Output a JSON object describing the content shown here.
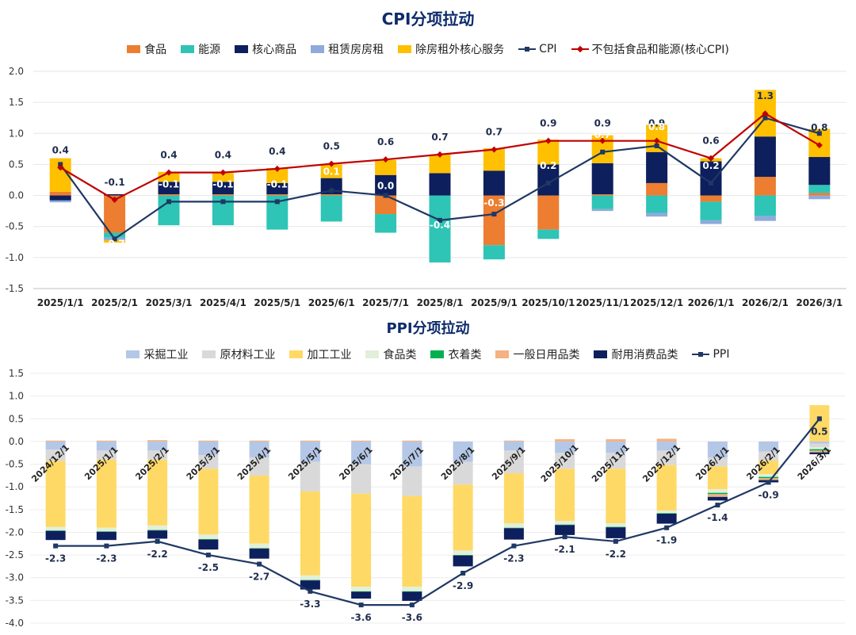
{
  "chart_data": [
    {
      "type": "bar",
      "title": "CPI分项拉动",
      "xlabel": "",
      "ylabel": "",
      "ylim": [
        -1.5,
        2.0
      ],
      "yticks": [
        "2.0",
        "1.5",
        "1.0",
        "0.5",
        "0.0",
        "-0.5",
        "-1.0",
        "-1.5"
      ],
      "categories": [
        "2025/1/1",
        "2025/2/1",
        "2025/3/1",
        "2025/4/1",
        "2025/5/1",
        "2025/6/1",
        "2025/7/1",
        "2025/8/1",
        "2025/9/1",
        "2025/10/1",
        "2025/11/1",
        "2025/12/1",
        "2026/1/1",
        "2026/2/1",
        "2026/3/1"
      ],
      "legend_position": "top",
      "series": [
        {
          "name": "食品",
          "kind": "bar",
          "color": "#ed7d31",
          "values": [
            0.06,
            -0.6,
            0.02,
            0.02,
            0.02,
            0.02,
            -0.3,
            0.0,
            -0.8,
            -0.55,
            0.02,
            0.2,
            -0.1,
            0.3,
            0.04
          ]
        },
        {
          "name": "能源",
          "kind": "bar",
          "color": "#2ec4b6",
          "values": [
            0.0,
            -0.08,
            -0.48,
            -0.48,
            -0.55,
            -0.42,
            -0.3,
            -1.08,
            -0.23,
            -0.15,
            -0.22,
            -0.28,
            -0.3,
            -0.33,
            0.13
          ]
        },
        {
          "name": "核心商品",
          "kind": "bar",
          "color": "#0d1f5c",
          "values": [
            -0.08,
            0.02,
            0.2,
            0.2,
            0.18,
            0.26,
            0.33,
            0.36,
            0.4,
            0.5,
            0.5,
            0.5,
            0.55,
            0.65,
            0.45
          ]
        },
        {
          "name": "租赁房房租",
          "kind": "bar",
          "color": "#8faadc",
          "values": [
            -0.03,
            -0.04,
            0.0,
            0.0,
            0.0,
            0.0,
            0.0,
            0.0,
            0.0,
            0.0,
            -0.03,
            -0.06,
            -0.06,
            -0.08,
            -0.06
          ]
        },
        {
          "name": "除房租外核心服务",
          "kind": "bar",
          "color": "#ffc000",
          "values": [
            0.54,
            -0.04,
            0.16,
            0.14,
            0.24,
            0.22,
            0.24,
            0.3,
            0.36,
            0.4,
            0.45,
            0.44,
            0.05,
            0.75,
            0.45
          ]
        },
        {
          "name": "CPI",
          "kind": "line",
          "color": "#1f3864",
          "values": [
            0.5,
            -0.7,
            -0.1,
            -0.1,
            -0.1,
            0.08,
            0.0,
            -0.4,
            -0.3,
            0.2,
            0.7,
            0.8,
            0.2,
            1.25,
            1.0
          ]
        },
        {
          "name": "不包括食品和能源(核心CPI)",
          "kind": "line",
          "color": "#c00000",
          "values": [
            0.45,
            -0.07,
            0.37,
            0.37,
            0.43,
            0.51,
            0.58,
            0.66,
            0.74,
            0.88,
            0.88,
            0.88,
            0.6,
            1.32,
            0.81
          ]
        }
      ],
      "data_labels": {
        "core_cpi": [
          "0.4",
          "-0.1",
          "0.4",
          "0.4",
          "0.4",
          "0.5",
          "0.6",
          "0.7",
          "0.7",
          "0.9",
          "0.9",
          "0.9",
          "0.6",
          "1.3",
          "0.8"
        ],
        "cpi": [
          "",
          "-0.7",
          "-0.1",
          "-0.1",
          "-0.1",
          "0.1",
          "0.0",
          "-0.4",
          "-0.3",
          "0.2",
          "0.7",
          "0.8",
          "0.2",
          "",
          ""
        ]
      }
    },
    {
      "type": "bar",
      "title": "PPI分项拉动",
      "xlabel": "",
      "ylabel": "",
      "ylim": [
        -4.0,
        1.5
      ],
      "yticks": [
        "1.5",
        "1.0",
        "0.5",
        "0.0",
        "-0.5",
        "-1.0",
        "-1.5",
        "-2.0",
        "-2.5",
        "-3.0",
        "-3.5",
        "-4.0"
      ],
      "categories": [
        "2024/12/1",
        "2025/1/1",
        "2025/2/1",
        "2025/3/1",
        "2025/4/1",
        "2025/5/1",
        "2025/6/1",
        "2025/7/1",
        "2025/8/1",
        "2025/9/1",
        "2025/10/1",
        "2025/11/1",
        "2025/12/1",
        "2026/1/1",
        "2026/2/1",
        "2026/3/1"
      ],
      "legend_position": "top",
      "series": [
        {
          "name": "采掘工业",
          "kind": "bar",
          "color": "#b4c7e7",
          "values": [
            -0.18,
            -0.2,
            -0.2,
            -0.3,
            -0.35,
            -0.45,
            -0.5,
            -0.55,
            -0.45,
            -0.2,
            -0.25,
            -0.25,
            -0.2,
            -0.35,
            -0.22,
            -0.05
          ]
        },
        {
          "name": "原材料工业",
          "kind": "bar",
          "color": "#d9d9d9",
          "values": [
            -0.25,
            -0.2,
            -0.2,
            -0.3,
            -0.4,
            -0.65,
            -0.65,
            -0.65,
            -0.5,
            -0.5,
            -0.35,
            -0.35,
            -0.32,
            -0.2,
            -0.2,
            -0.08
          ]
        },
        {
          "name": "加工工业",
          "kind": "bar",
          "color": "#ffd966",
          "values": [
            -1.45,
            -1.5,
            -1.45,
            -1.45,
            -1.5,
            -1.85,
            -2.05,
            -2.0,
            -1.45,
            -1.1,
            -1.15,
            -1.2,
            -1.0,
            -0.5,
            -0.3,
            0.8
          ]
        },
        {
          "name": "食品类",
          "kind": "bar",
          "color": "#e2efda",
          "values": [
            -0.08,
            -0.08,
            -0.1,
            -0.1,
            -0.1,
            -0.1,
            -0.1,
            -0.1,
            -0.1,
            -0.1,
            -0.08,
            -0.08,
            -0.06,
            -0.08,
            -0.06,
            -0.04
          ]
        },
        {
          "name": "衣着类",
          "kind": "bar",
          "color": "#00b050",
          "values": [
            -0.01,
            -0.01,
            -0.01,
            -0.01,
            -0.01,
            -0.01,
            -0.01,
            -0.01,
            -0.01,
            -0.01,
            -0.01,
            -0.01,
            -0.01,
            -0.03,
            -0.03,
            -0.03
          ]
        },
        {
          "name": "一般日用品类",
          "kind": "bar",
          "color": "#f4b183",
          "values": [
            0.02,
            0.02,
            0.03,
            0.02,
            0.02,
            0.02,
            0.02,
            0.02,
            0.0,
            0.02,
            0.05,
            0.05,
            0.06,
            -0.06,
            -0.04,
            -0.04
          ]
        },
        {
          "name": "耐用消费品类",
          "kind": "bar",
          "color": "#0d1f5c",
          "values": [
            -0.2,
            -0.18,
            -0.18,
            -0.22,
            -0.22,
            -0.2,
            -0.15,
            -0.2,
            -0.24,
            -0.25,
            -0.22,
            -0.24,
            -0.22,
            -0.08,
            -0.05,
            -0.04
          ]
        },
        {
          "name": "PPI",
          "kind": "line",
          "color": "#1f3864",
          "values": [
            -2.3,
            -2.3,
            -2.2,
            -2.5,
            -2.7,
            -3.3,
            -3.6,
            -3.6,
            -2.9,
            -2.3,
            -2.1,
            -2.2,
            -1.9,
            -1.4,
            -0.9,
            0.5
          ]
        }
      ],
      "data_labels": {
        "ppi": [
          "-2.3",
          "-2.3",
          "-2.2",
          "-2.5",
          "-2.7",
          "-3.3",
          "-3.6",
          "-3.6",
          "-2.9",
          "-2.3",
          "-2.1",
          "-2.2",
          "-1.9",
          "-1.4",
          "-0.9",
          "0.5"
        ]
      }
    }
  ]
}
